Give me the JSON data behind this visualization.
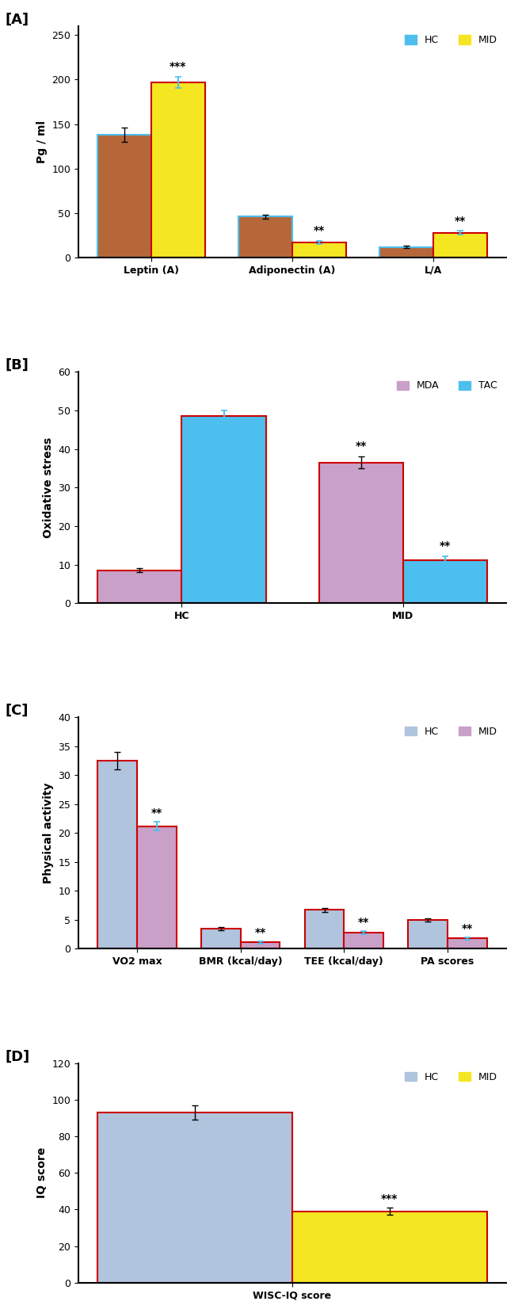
{
  "panel_A": {
    "ylabel": "Pg / ml",
    "panel_label": "[A]",
    "ylim": [
      0,
      260
    ],
    "yticks": [
      0,
      50,
      100,
      150,
      200,
      250
    ],
    "categories": [
      "Leptin (A)",
      "Adiponectin (A)",
      "L/A"
    ],
    "HC_values": [
      138,
      46,
      12
    ],
    "MID_values": [
      197,
      17,
      28
    ],
    "HC_errors": [
      8,
      2,
      1.5
    ],
    "MID_errors": [
      6,
      2,
      2
    ],
    "HC_color": "#b5673a",
    "HC_edge": "#4dbfef",
    "MID_color": "#f5e622",
    "MID_edge": "#cc0000",
    "err_color_HC": "black",
    "err_color_MID": "#4dbfef",
    "significance": [
      "***",
      "**",
      "**"
    ],
    "sig_on_MID": [
      true,
      true,
      true
    ],
    "legend_HC_color": "#4dbfef",
    "legend_MID_color": "#f5e622",
    "legend_labels": [
      "HC",
      "MID"
    ]
  },
  "panel_B": {
    "ylabel": "Oxidative stress",
    "panel_label": "[B]",
    "ylim": [
      0,
      60
    ],
    "yticks": [
      0,
      10,
      20,
      30,
      40,
      50,
      60
    ],
    "categories": [
      "HC",
      "MID"
    ],
    "MDA_values": [
      8.5,
      36.5
    ],
    "TAC_values": [
      48.5,
      11.2
    ],
    "MDA_errors": [
      0.5,
      1.5
    ],
    "TAC_errors": [
      1.5,
      1.0
    ],
    "MDA_color": "#c8a0c8",
    "TAC_color": "#4dbfef",
    "MDA_edge": "#cc0000",
    "TAC_edge": "#cc0000",
    "err_color_MDA": "black",
    "err_color_TAC": "#4dbfef",
    "legend_MDA_color": "#cc0000",
    "legend_TAC_color": "#4dbfef",
    "legend_labels": [
      "MDA",
      "TAC"
    ]
  },
  "panel_C": {
    "ylabel": "Physical activity",
    "panel_label": "[C]",
    "ylim": [
      0,
      40
    ],
    "yticks": [
      0,
      5,
      10,
      15,
      20,
      25,
      30,
      35,
      40
    ],
    "categories": [
      "VO2 max",
      "BMR (kcal/day)",
      "TEE (kcal/day)",
      "PA scores"
    ],
    "HC_values": [
      32.5,
      3.5,
      6.7,
      5.0
    ],
    "MID_values": [
      21.2,
      1.1,
      2.8,
      1.8
    ],
    "HC_errors": [
      1.5,
      0.3,
      0.4,
      0.3
    ],
    "MID_errors": [
      0.8,
      0.2,
      0.3,
      0.2
    ],
    "HC_color": "#b0c4de",
    "MID_color": "#c8a0c8",
    "HC_edge": "#cc0000",
    "MID_edge": "#cc0000",
    "err_color_HC": "black",
    "err_color_MID": "#4dbfef",
    "significance": [
      "**",
      "**",
      "**",
      "**"
    ],
    "sig_on_MID": [
      true,
      true,
      true,
      true
    ],
    "legend_HC_color": "#cc0000",
    "legend_MID_color": "#cc0000",
    "legend_labels": [
      "HC",
      "MID"
    ]
  },
  "panel_D": {
    "ylabel": "IQ score",
    "panel_label": "[D]",
    "ylim": [
      0,
      120
    ],
    "yticks": [
      0,
      20,
      40,
      60,
      80,
      100,
      120
    ],
    "categories": [
      "WISC-IQ score"
    ],
    "HC_values": [
      93
    ],
    "MID_values": [
      39
    ],
    "HC_errors": [
      4
    ],
    "MID_errors": [
      2
    ],
    "HC_color": "#b0c4de",
    "MID_color": "#f5e622",
    "HC_edge": "#cc0000",
    "MID_edge": "#cc0000",
    "err_color_HC": "black",
    "err_color_MID": "black",
    "significance": [
      "***"
    ],
    "sig_on_MID": [
      true
    ],
    "legend_HC_color": "#4472c4",
    "legend_MID_color": "#cc0000",
    "legend_labels": [
      "HC",
      "MID"
    ]
  }
}
